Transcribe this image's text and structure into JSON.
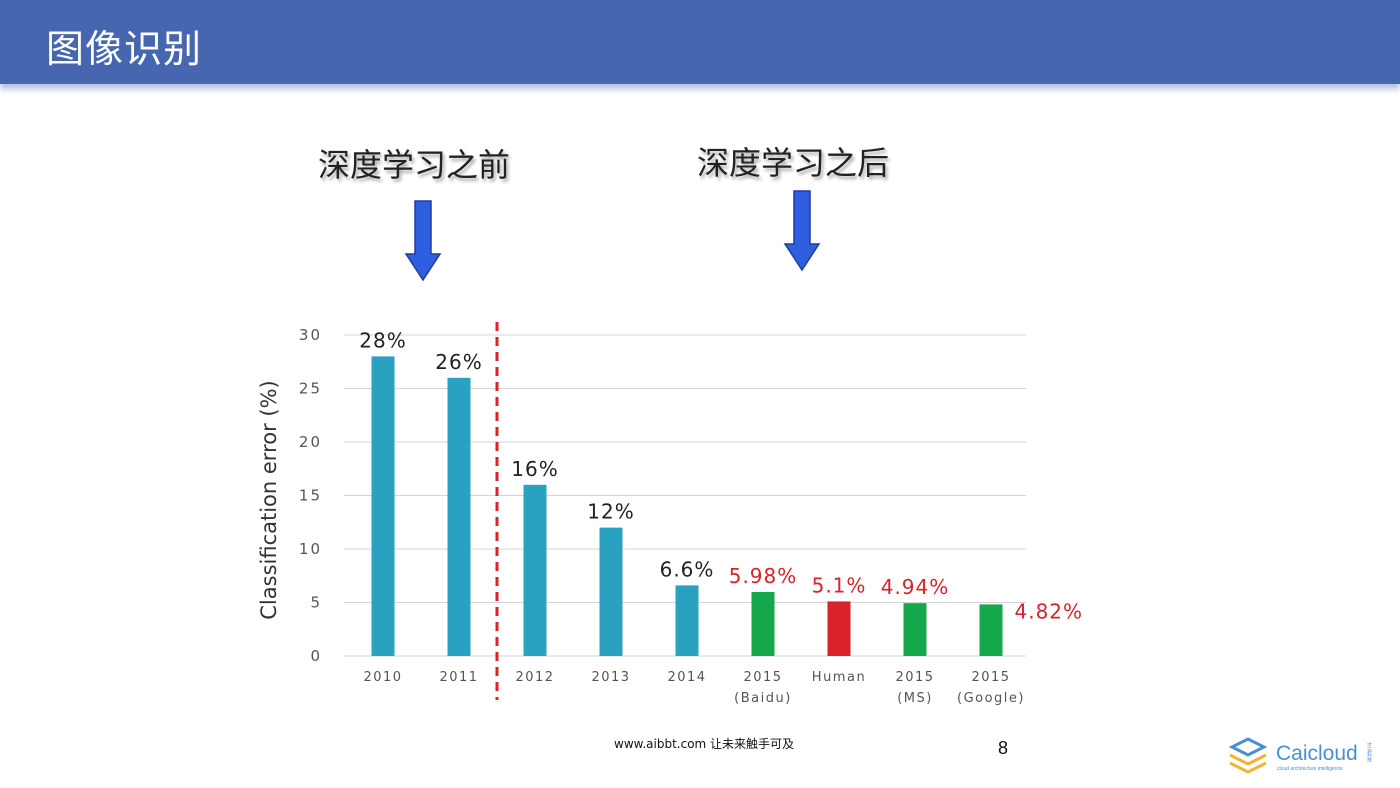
{
  "header": {
    "title": "图像识别"
  },
  "annotations": {
    "before": "深度学习之前",
    "after": "深度学习之后",
    "arrow_color": "#2f5fe0"
  },
  "chart_data": {
    "type": "bar",
    "ylabel": "Classification error (%)",
    "xlabel": "",
    "ylim": [
      0,
      30
    ],
    "yticks": [
      0,
      5,
      10,
      15,
      20,
      25,
      30
    ],
    "grid": true,
    "categories": [
      [
        "2010"
      ],
      [
        "2011"
      ],
      [
        "2012"
      ],
      [
        "2013"
      ],
      [
        "2014"
      ],
      [
        "2015",
        "(Baidu)"
      ],
      [
        "Human"
      ],
      [
        "2015",
        "(MS)"
      ],
      [
        "2015",
        "(Google)"
      ]
    ],
    "values": [
      28,
      26,
      16,
      12,
      6.6,
      5.98,
      5.1,
      4.94,
      4.82
    ],
    "labels": [
      "28%",
      "26%",
      "16%",
      "12%",
      "6.6%",
      "5.98%",
      "5.1%",
      "4.94%",
      "4.82%"
    ],
    "bar_colors": [
      "#2aa1c0",
      "#2aa1c0",
      "#2aa1c0",
      "#2aa1c0",
      "#2aa1c0",
      "#14a84a",
      "#d9222a",
      "#14a84a",
      "#14a84a"
    ],
    "label_colors": [
      "#222222",
      "#222222",
      "#222222",
      "#222222",
      "#222222",
      "#d9222a",
      "#d9222a",
      "#d9222a",
      "#d9222a"
    ],
    "divider_after_index": 1,
    "divider_color": "#d9222a"
  },
  "footer": {
    "url": "www.aibbt.com 让未来触手可及",
    "page_number": "8"
  },
  "logo": {
    "name": "Caicloud",
    "tagline": "cloud  architecture  intelligence",
    "side_text": "才云科技",
    "brand_color": "#4a8fd4",
    "accent_color": "#f2b431"
  }
}
